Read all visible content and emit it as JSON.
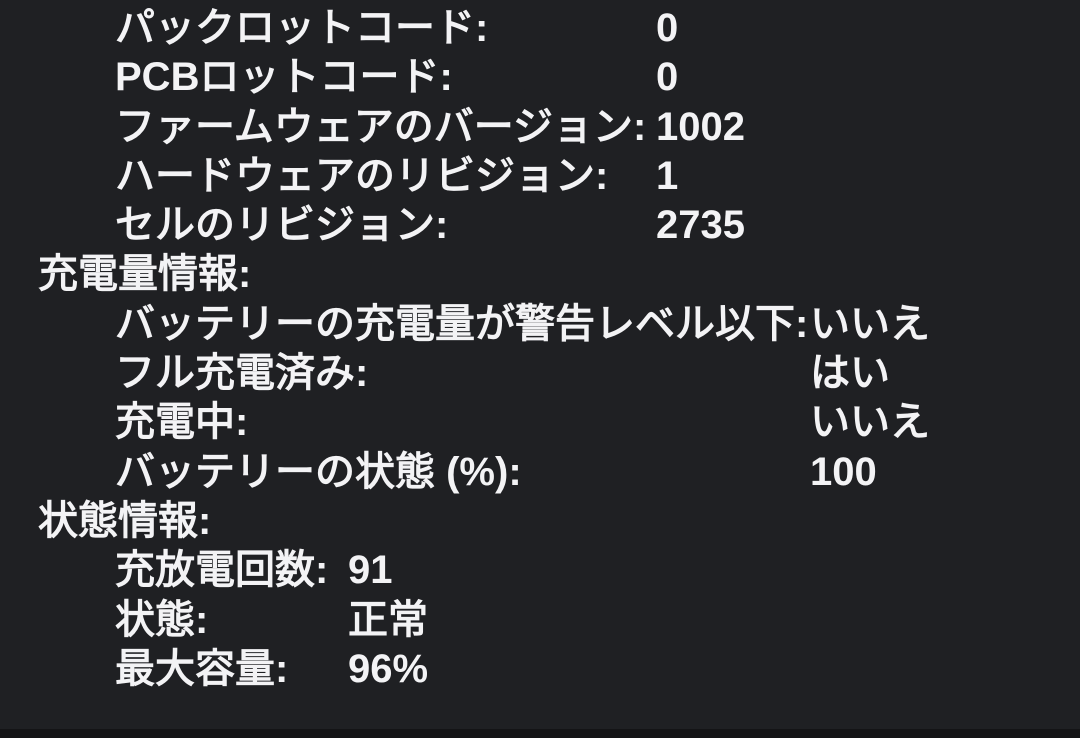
{
  "window": {
    "background_color": "#1f2023",
    "text_color": "#f3f3f5",
    "bottom_edge_color": "#141416"
  },
  "battery_report": {
    "groups": [
      {
        "header": "",
        "rows": [
          {
            "label": "パックロットコード:",
            "value": "0"
          },
          {
            "label": "PCBロットコード:",
            "value": "0"
          },
          {
            "label": "ファームウェアのバージョン:",
            "value": "1002"
          },
          {
            "label": "ハードウェアのリビジョン:",
            "value": "1"
          },
          {
            "label": "セルのリビジョン:",
            "value": "2735"
          }
        ]
      },
      {
        "header": "充電量情報:",
        "rows": [
          {
            "label": "バッテリーの充電量が警告レベル以下:",
            "value": "いいえ"
          },
          {
            "label": "フル充電済み:",
            "value": "はい"
          },
          {
            "label": "充電中:",
            "value": "いいえ"
          },
          {
            "label": "バッテリーの状態 (%):",
            "value": "100"
          }
        ]
      },
      {
        "header": "状態情報:",
        "rows": [
          {
            "label": "充放電回数:",
            "value": "91"
          },
          {
            "label": "状態:",
            "value": "正常"
          },
          {
            "label": "最大容量:",
            "value": "96%"
          }
        ]
      }
    ]
  }
}
